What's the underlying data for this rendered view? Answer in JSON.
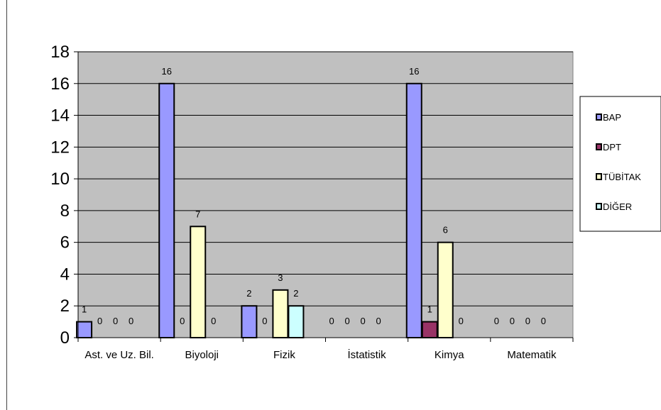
{
  "chart_data": {
    "type": "bar",
    "categories": [
      "Ast. ve Uz. Bil.",
      "Biyoloji",
      "Fizik",
      "İstatistik",
      "Kimya",
      "Matematik"
    ],
    "series": [
      {
        "name": "BAP",
        "values": [
          1,
          16,
          2,
          0,
          16,
          0
        ],
        "color": "#9999ff"
      },
      {
        "name": "DPT",
        "values": [
          0,
          0,
          0,
          0,
          1,
          0
        ],
        "color": "#993366"
      },
      {
        "name": "TÜBİTAK",
        "values": [
          0,
          7,
          3,
          0,
          6,
          0
        ],
        "color": "#ffffcc"
      },
      {
        "name": "DİĞER",
        "values": [
          0,
          0,
          2,
          0,
          0,
          0
        ],
        "color": "#ccffff"
      }
    ],
    "ylim": [
      0,
      18
    ],
    "yticks": [
      0,
      2,
      4,
      6,
      8,
      10,
      12,
      14,
      16,
      18
    ],
    "grid": true,
    "plot_background": "#c0c0c0",
    "legend_position": "right"
  }
}
